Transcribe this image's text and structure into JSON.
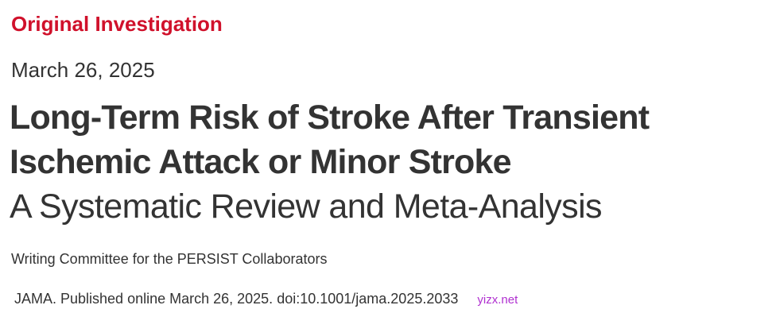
{
  "article": {
    "kicker": "Original Investigation",
    "date": "March 26, 2025",
    "title": "Long-Term Risk of Stroke After Transient Ischemic Attack or Minor Stroke",
    "subtitle": "A Systematic Review and Meta-Analysis",
    "authors": "Writing Committee for the PERSIST Collaborators",
    "citation": "JAMA. Published online March 26, 2025. doi:10.1001/jama.2025.2033"
  },
  "watermark": "yizx.net",
  "colors": {
    "kicker": "#d0112b",
    "text": "#333333",
    "watermark": "#b030d0"
  }
}
